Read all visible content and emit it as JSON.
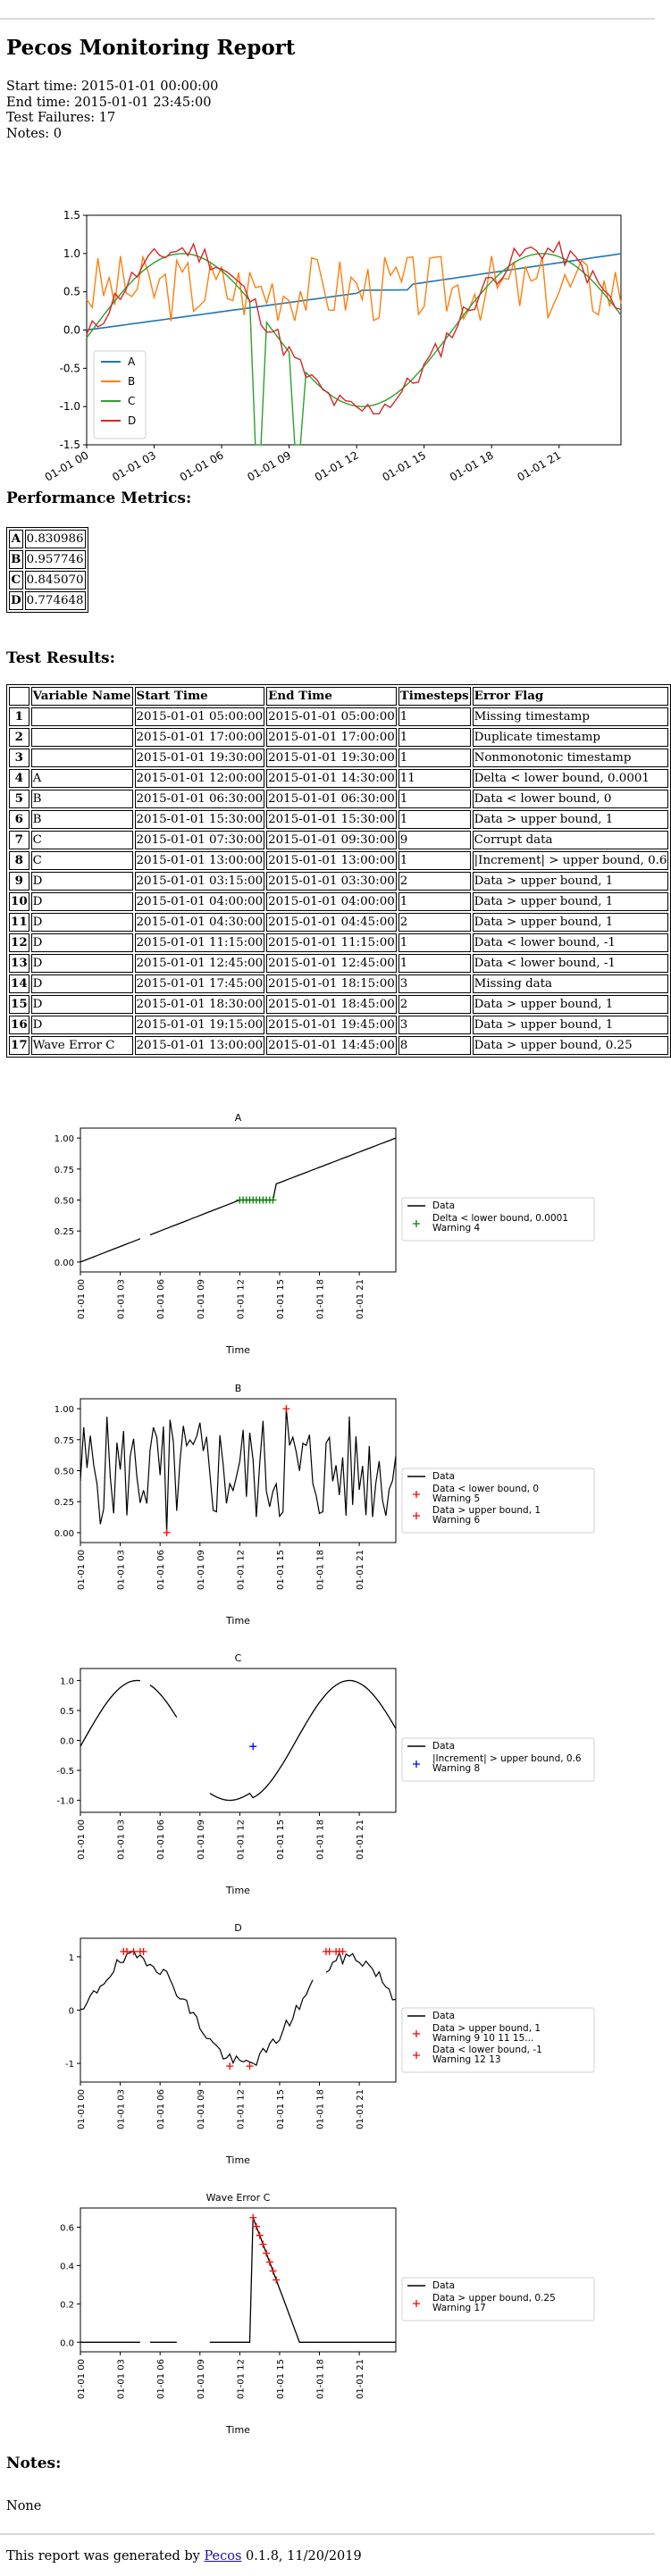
{
  "report": {
    "title": "Pecos Monitoring Report",
    "start_time": "Start time: 2015-01-01 00:00:00",
    "end_time": "End time: 2015-01-01 23:45:00",
    "test_failures": "Test Failures: 17",
    "notes_count": "Notes: 0"
  },
  "sections": {
    "performance": "Performance Metrics:",
    "test_results": "Test Results:",
    "notes": "Notes:",
    "notes_body": "None"
  },
  "metrics": [
    {
      "name": "A",
      "value": "0.830986"
    },
    {
      "name": "B",
      "value": "0.957746"
    },
    {
      "name": "C",
      "value": "0.845070"
    },
    {
      "name": "D",
      "value": "0.774648"
    }
  ],
  "test_table": {
    "headers": [
      "",
      "Variable Name",
      "Start Time",
      "End Time",
      "Timesteps",
      "Error Flag"
    ],
    "rows": [
      [
        "1",
        "",
        "2015-01-01 05:00:00",
        "2015-01-01 05:00:00",
        "1",
        "Missing timestamp"
      ],
      [
        "2",
        "",
        "2015-01-01 17:00:00",
        "2015-01-01 17:00:00",
        "1",
        "Duplicate timestamp"
      ],
      [
        "3",
        "",
        "2015-01-01 19:30:00",
        "2015-01-01 19:30:00",
        "1",
        "Nonmonotonic timestamp"
      ],
      [
        "4",
        "A",
        "2015-01-01 12:00:00",
        "2015-01-01 14:30:00",
        "11",
        "Delta < lower bound, 0.0001"
      ],
      [
        "5",
        "B",
        "2015-01-01 06:30:00",
        "2015-01-01 06:30:00",
        "1",
        "Data < lower bound, 0"
      ],
      [
        "6",
        "B",
        "2015-01-01 15:30:00",
        "2015-01-01 15:30:00",
        "1",
        "Data > upper bound, 1"
      ],
      [
        "7",
        "C",
        "2015-01-01 07:30:00",
        "2015-01-01 09:30:00",
        "9",
        "Corrupt data"
      ],
      [
        "8",
        "C",
        "2015-01-01 13:00:00",
        "2015-01-01 13:00:00",
        "1",
        "|Increment| > upper bound, 0.6"
      ],
      [
        "9",
        "D",
        "2015-01-01 03:15:00",
        "2015-01-01 03:30:00",
        "2",
        "Data > upper bound, 1"
      ],
      [
        "10",
        "D",
        "2015-01-01 04:00:00",
        "2015-01-01 04:00:00",
        "1",
        "Data > upper bound, 1"
      ],
      [
        "11",
        "D",
        "2015-01-01 04:30:00",
        "2015-01-01 04:45:00",
        "2",
        "Data > upper bound, 1"
      ],
      [
        "12",
        "D",
        "2015-01-01 11:15:00",
        "2015-01-01 11:15:00",
        "1",
        "Data < lower bound, -1"
      ],
      [
        "13",
        "D",
        "2015-01-01 12:45:00",
        "2015-01-01 12:45:00",
        "1",
        "Data < lower bound, -1"
      ],
      [
        "14",
        "D",
        "2015-01-01 17:45:00",
        "2015-01-01 18:15:00",
        "3",
        "Missing data"
      ],
      [
        "15",
        "D",
        "2015-01-01 18:30:00",
        "2015-01-01 18:45:00",
        "2",
        "Data > upper bound, 1"
      ],
      [
        "16",
        "D",
        "2015-01-01 19:15:00",
        "2015-01-01 19:45:00",
        "3",
        "Data > upper bound, 1"
      ],
      [
        "17",
        "Wave Error C",
        "2015-01-01 13:00:00",
        "2015-01-01 14:45:00",
        "8",
        "Data > upper bound, 0.25"
      ]
    ]
  },
  "colors": {
    "A": "#1f77b4",
    "B": "#ff7f0e",
    "C": "#2ca02c",
    "D": "#d62728",
    "error": "#ff0000",
    "warn_green": "#008000",
    "warn_blue": "#0000ff"
  },
  "footer": {
    "prefix": "This report was generated by ",
    "link": "Pecos",
    "suffix": " 0.1.8, 11/20/2019"
  },
  "chart_data": [
    {
      "type": "line",
      "title": "",
      "xlabel": "",
      "ylabel": "",
      "x_ticks": [
        "01-01 00",
        "01-01 03",
        "01-01 06",
        "01-01 09",
        "01-01 12",
        "01-01 15",
        "01-01 18",
        "01-01 21"
      ],
      "y_ticks": [
        "-1.5",
        "-1.0",
        "-0.5",
        "0.0",
        "0.5",
        "1.0",
        "1.5"
      ],
      "xlim": [
        0,
        23.75
      ],
      "ylim": [
        -1.5,
        1.5
      ],
      "legend": "lower-left",
      "series": [
        {
          "name": "A",
          "color": "#1f77b4",
          "shape": "ramp",
          "values_desc": "linear 0 to 1 over the day"
        },
        {
          "name": "B",
          "color": "#ff7f0e",
          "shape": "noisy",
          "range": [
            0,
            1
          ]
        },
        {
          "name": "C",
          "color": "#2ca02c",
          "shape": "sine",
          "amplitude": 1
        },
        {
          "name": "D",
          "color": "#d62728",
          "shape": "noisy-sine",
          "amplitude": 1
        }
      ]
    },
    {
      "type": "line",
      "title": "A",
      "xlabel": "Time",
      "ylabel": "",
      "x_ticks": [
        "01-01 00",
        "01-01 03",
        "01-01 06",
        "01-01 09",
        "01-01 12",
        "01-01 15",
        "01-01 18",
        "01-01 21"
      ],
      "y_ticks": [
        "0.00",
        "0.25",
        "0.50",
        "0.75",
        "1.00"
      ],
      "ylim": [
        -0.08,
        1.08
      ],
      "legend": "right",
      "legend_entries": [
        {
          "name": "Data",
          "marker": "line"
        },
        {
          "name": "Delta < lower bound, 0.0001",
          "sub": "Warning 4",
          "marker": "+",
          "color": "#008000"
        }
      ]
    },
    {
      "type": "line",
      "title": "B",
      "xlabel": "Time",
      "ylabel": "",
      "x_ticks": [
        "01-01 00",
        "01-01 03",
        "01-01 06",
        "01-01 09",
        "01-01 12",
        "01-01 15",
        "01-01 18",
        "01-01 21"
      ],
      "y_ticks": [
        "0.00",
        "0.25",
        "0.50",
        "0.75",
        "1.00"
      ],
      "ylim": [
        -0.08,
        1.08
      ],
      "legend": "right",
      "legend_entries": [
        {
          "name": "Data",
          "marker": "line"
        },
        {
          "name": "Data < lower bound, 0",
          "sub": "Warning 5",
          "marker": "+",
          "color": "#ff0000"
        },
        {
          "name": "Data > upper bound, 1",
          "sub": "Warning 6",
          "marker": "+",
          "color": "#ff0000"
        }
      ]
    },
    {
      "type": "line",
      "title": "C",
      "xlabel": "Time",
      "ylabel": "",
      "x_ticks": [
        "01-01 00",
        "01-01 03",
        "01-01 06",
        "01-01 09",
        "01-01 12",
        "01-01 15",
        "01-01 18",
        "01-01 21"
      ],
      "y_ticks": [
        "-1.0",
        "-0.5",
        "0.0",
        "0.5",
        "1.0"
      ],
      "ylim": [
        -1.2,
        1.2
      ],
      "legend": "right",
      "legend_entries": [
        {
          "name": "Data",
          "marker": "line"
        },
        {
          "name": "|Increment| > upper bound, 0.6",
          "sub": "Warning 8",
          "marker": "+",
          "color": "#0000ff"
        }
      ]
    },
    {
      "type": "line",
      "title": "D",
      "xlabel": "Time",
      "ylabel": "",
      "x_ticks": [
        "01-01 00",
        "01-01 03",
        "01-01 06",
        "01-01 09",
        "01-01 12",
        "01-01 15",
        "01-01 18",
        "01-01 21"
      ],
      "y_ticks": [
        "-1",
        "0",
        "1"
      ],
      "ylim": [
        -1.35,
        1.35
      ],
      "legend": "right",
      "legend_entries": [
        {
          "name": "Data",
          "marker": "line"
        },
        {
          "name": "Data > upper bound, 1",
          "sub": "Warning  9 10 11 15...",
          "marker": "+",
          "color": "#ff0000"
        },
        {
          "name": "Data < lower bound, -1",
          "sub": "Warning 12 13",
          "marker": "+",
          "color": "#ff0000"
        }
      ]
    },
    {
      "type": "line",
      "title": "Wave Error C",
      "xlabel": "Time",
      "ylabel": "",
      "x_ticks": [
        "01-01 00",
        "01-01 03",
        "01-01 06",
        "01-01 09",
        "01-01 12",
        "01-01 15",
        "01-01 18",
        "01-01 21"
      ],
      "y_ticks": [
        "0.0",
        "0.2",
        "0.4",
        "0.6"
      ],
      "ylim": [
        -0.05,
        0.7
      ],
      "legend": "right",
      "legend_entries": [
        {
          "name": "Data",
          "marker": "line"
        },
        {
          "name": "Data > upper bound, 0.25",
          "sub": "Warning 17",
          "marker": "+",
          "color": "#ff0000"
        }
      ]
    }
  ]
}
